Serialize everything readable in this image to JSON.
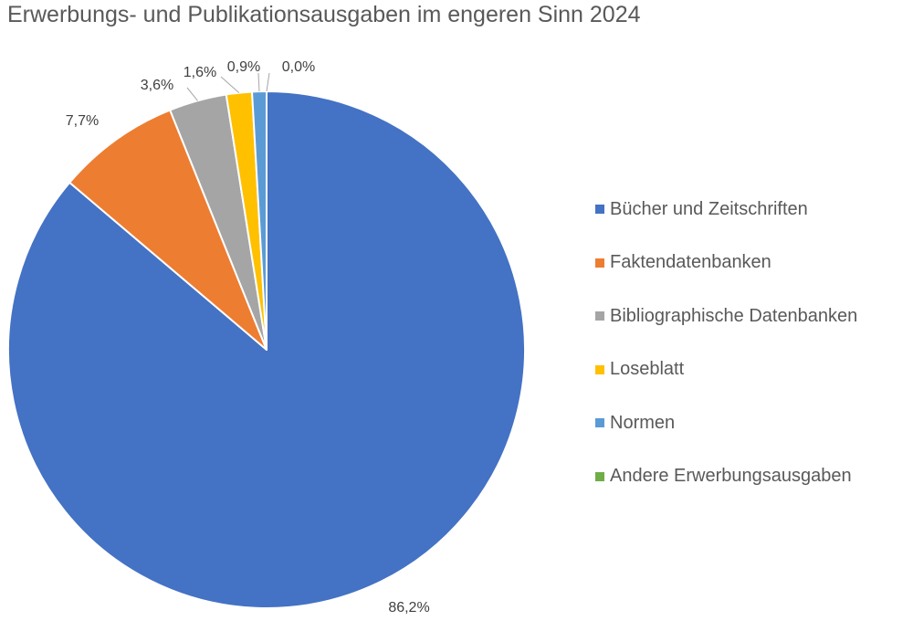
{
  "chart_data": {
    "type": "pie",
    "title": "Erwerbungs- und Publikationsausgaben im engeren Sinn 2024",
    "legend_position": "right",
    "slices": [
      {
        "name": "Bücher und Zeitschriften",
        "value": 86.2,
        "label": "86,2%",
        "color": "#4472C4"
      },
      {
        "name": "Faktendatenbanken",
        "value": 7.7,
        "label": "7,7%",
        "color": "#ED7D31"
      },
      {
        "name": "Bibliographische Datenbanken",
        "value": 3.6,
        "label": "3,6%",
        "color": "#A5A5A5"
      },
      {
        "name": "Loseblatt",
        "value": 1.6,
        "label": "1,6%",
        "color": "#FFC000"
      },
      {
        "name": "Normen",
        "value": 0.9,
        "label": "0,9%",
        "color": "#5B9BD5"
      },
      {
        "name": "Andere Erwerbungsausgaben",
        "value": 0.0,
        "label": "0,0%",
        "color": "#70AD47"
      }
    ]
  }
}
